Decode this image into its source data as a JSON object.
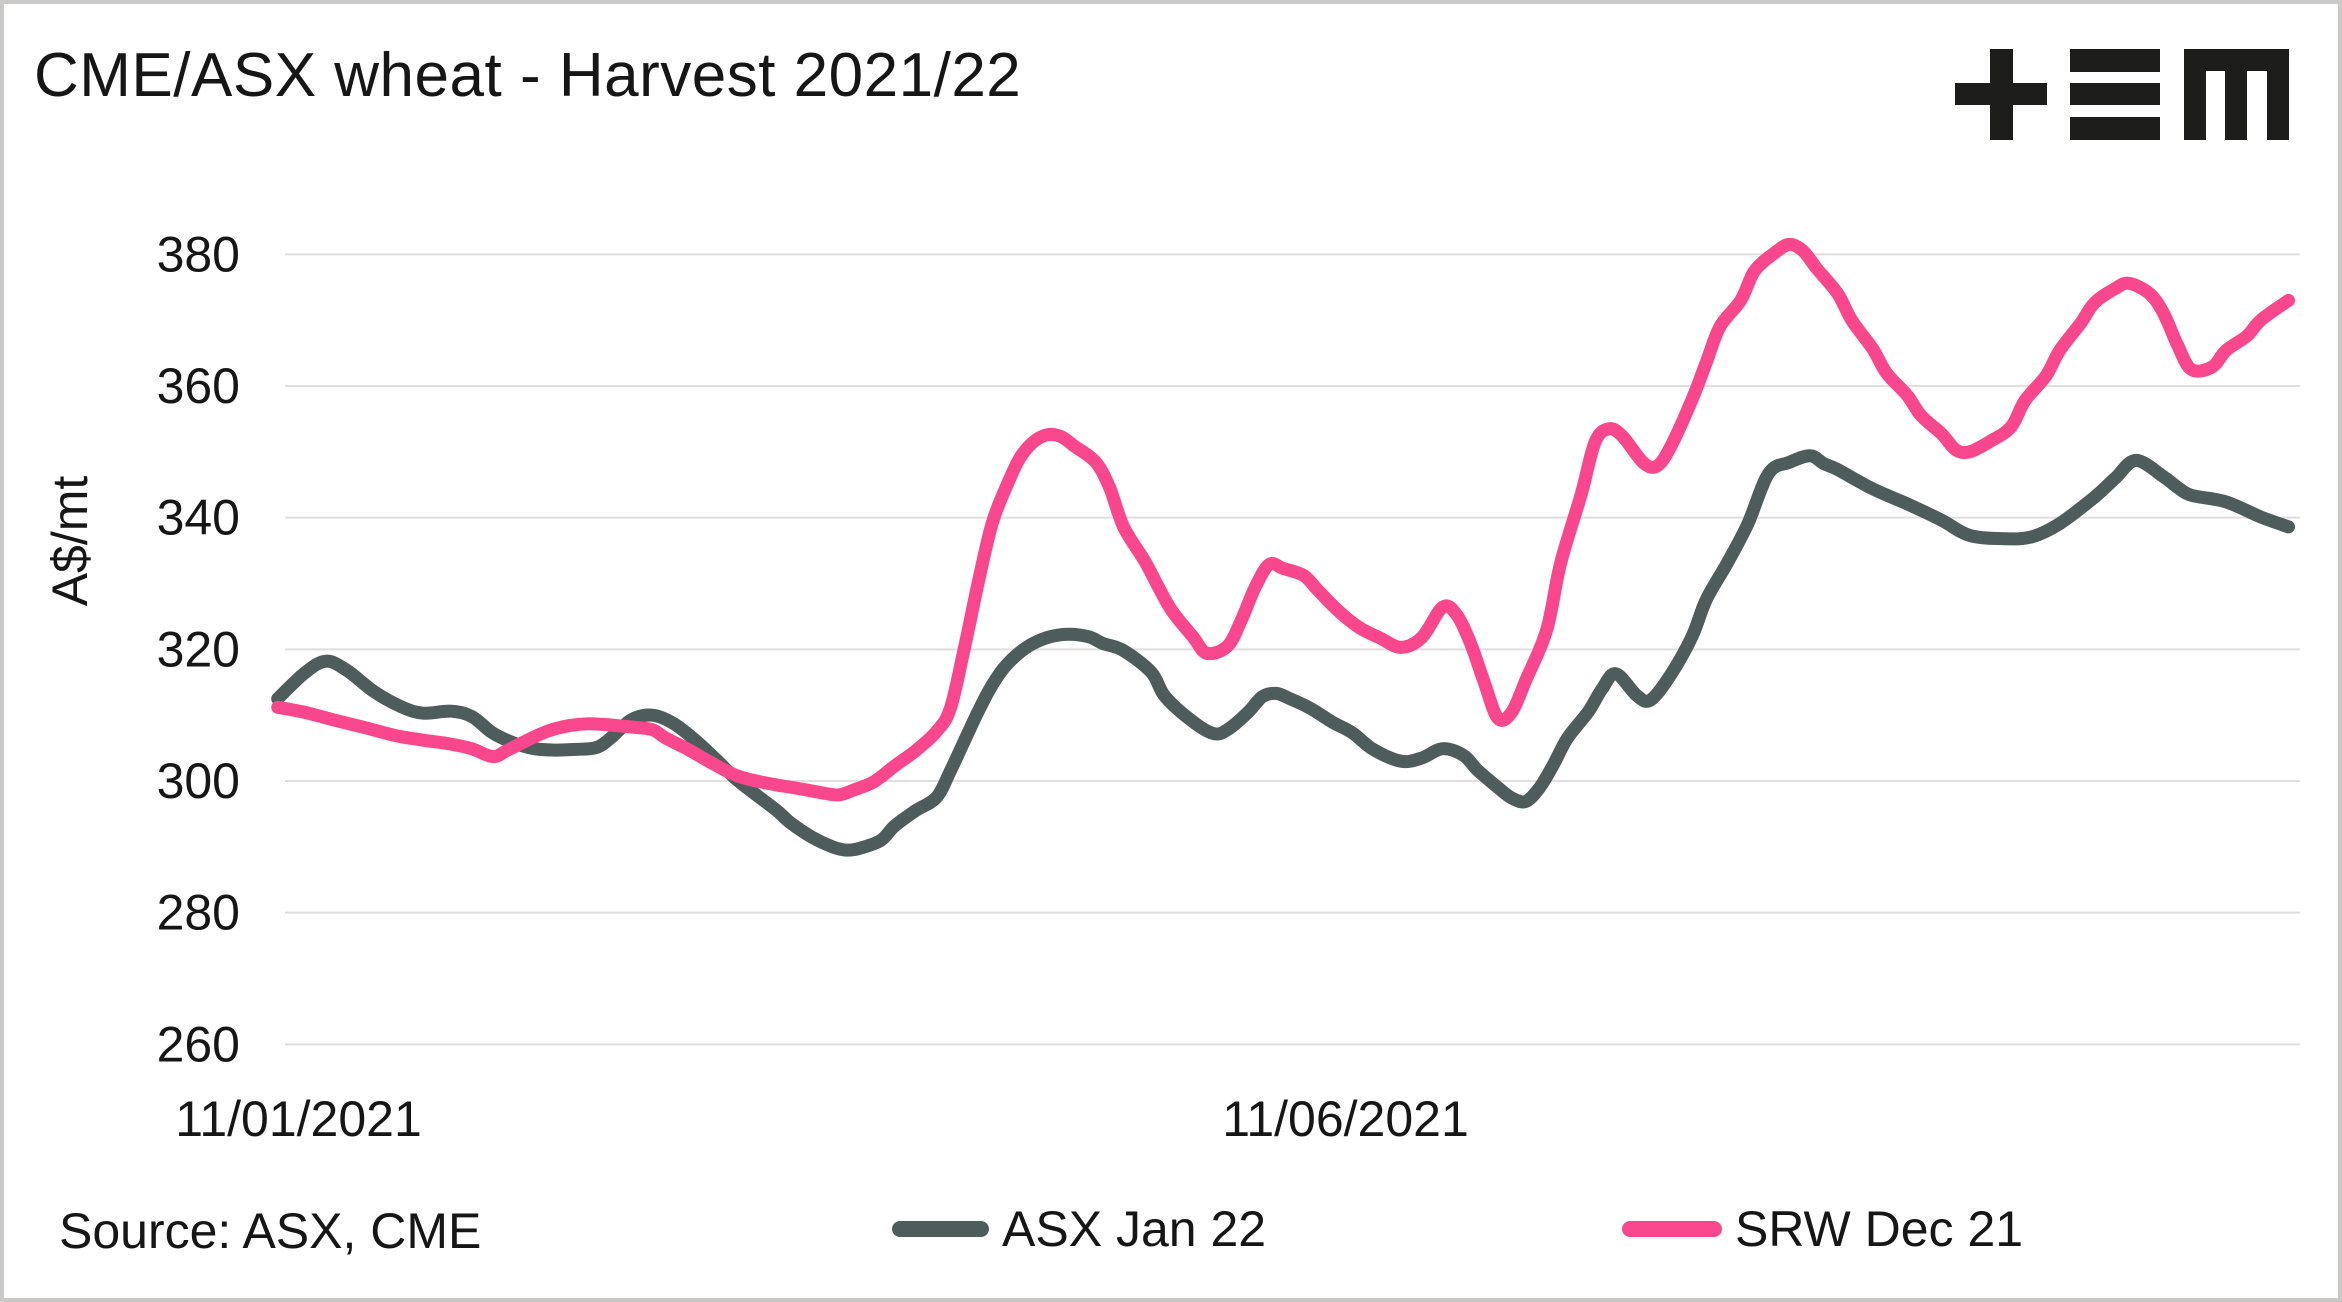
{
  "header": {
    "title": "CME/ASX wheat - Harvest 2021/22",
    "logo": "tem-logo",
    "logo_color": "#1d1d1b"
  },
  "source_note": "Source: ASX, CME",
  "legend": {
    "asx_label": "ASX Jan 22",
    "srw_label": "SRW Dec 21"
  },
  "colors": {
    "asx": "#4E5D5C",
    "srw": "#F9478E",
    "gridline": "#e0dede",
    "text": "#161616"
  },
  "chart_data": {
    "type": "line",
    "title": "CME/ASX wheat - Harvest 2021/22",
    "xlabel": "",
    "ylabel": "A$/mt",
    "ylim": [
      260,
      385
    ],
    "yticks": [
      260,
      280,
      300,
      320,
      340,
      360,
      380
    ],
    "xticks": [
      "11/01/2021",
      "11/06/2021"
    ],
    "grid": "horizontal-only",
    "legend_position": "bottom",
    "series": [
      {
        "name": "ASX Jan 22",
        "color": "#4E5D5C",
        "points": [
          [
            "08/01/2021",
            312.5
          ],
          [
            "12/01/2021",
            316.5
          ],
          [
            "15/01/2021",
            318.2
          ],
          [
            "18/01/2021",
            316.8
          ],
          [
            "22/01/2021",
            313.5
          ],
          [
            "26/01/2021",
            311.2
          ],
          [
            "29/01/2021",
            310.3
          ],
          [
            "02/02/2021",
            310.6
          ],
          [
            "05/02/2021",
            309.8
          ],
          [
            "08/02/2021",
            307.3
          ],
          [
            "11/02/2021",
            305.8
          ],
          [
            "14/02/2021",
            304.9
          ],
          [
            "17/02/2021",
            304.7
          ],
          [
            "20/02/2021",
            304.8
          ],
          [
            "23/02/2021",
            305.1
          ],
          [
            "25/02/2021",
            306.5
          ],
          [
            "28/02/2021",
            309.3
          ],
          [
            "03/03/2021",
            310.0
          ],
          [
            "06/03/2021",
            308.8
          ],
          [
            "09/03/2021",
            306.4
          ],
          [
            "12/03/2021",
            303.5
          ],
          [
            "15/03/2021",
            300.4
          ],
          [
            "18/03/2021",
            297.9
          ],
          [
            "21/03/2021",
            295.5
          ],
          [
            "23/03/2021",
            293.6
          ],
          [
            "26/03/2021",
            291.5
          ],
          [
            "29/03/2021",
            290.0
          ],
          [
            "31/03/2021",
            289.5
          ],
          [
            "02/04/2021",
            289.8
          ],
          [
            "05/04/2021",
            291.0
          ],
          [
            "07/04/2021",
            293.2
          ],
          [
            "10/04/2021",
            295.5
          ],
          [
            "13/04/2021",
            297.5
          ],
          [
            "15/04/2021",
            301.5
          ],
          [
            "17/04/2021",
            306.0
          ],
          [
            "19/04/2021",
            310.5
          ],
          [
            "21/04/2021",
            314.5
          ],
          [
            "23/04/2021",
            317.5
          ],
          [
            "26/04/2021",
            320.3
          ],
          [
            "29/04/2021",
            321.8
          ],
          [
            "02/05/2021",
            322.3
          ],
          [
            "05/05/2021",
            321.9
          ],
          [
            "07/05/2021",
            320.9
          ],
          [
            "10/05/2021",
            319.8
          ],
          [
            "14/05/2021",
            316.5
          ],
          [
            "16/05/2021",
            312.8
          ],
          [
            "20/05/2021",
            309.0
          ],
          [
            "23/05/2021",
            307.2
          ],
          [
            "25/05/2021",
            307.8
          ],
          [
            "28/05/2021",
            310.5
          ],
          [
            "30/05/2021",
            312.8
          ],
          [
            "01/06/2021",
            313.3
          ],
          [
            "03/06/2021",
            312.5
          ],
          [
            "06/06/2021",
            311.0
          ],
          [
            "09/06/2021",
            309.0
          ],
          [
            "12/06/2021",
            307.3
          ],
          [
            "15/06/2021",
            304.8
          ],
          [
            "19/06/2021",
            303.0
          ],
          [
            "22/06/2021",
            303.5
          ],
          [
            "25/06/2021",
            304.9
          ],
          [
            "28/06/2021",
            303.9
          ],
          [
            "30/06/2021",
            301.7
          ],
          [
            "03/07/2021",
            299.0
          ],
          [
            "05/07/2021",
            297.4
          ],
          [
            "07/07/2021",
            296.9
          ],
          [
            "09/07/2021",
            299.0
          ],
          [
            "11/07/2021",
            302.5
          ],
          [
            "13/07/2021",
            306.5
          ],
          [
            "16/07/2021",
            310.5
          ],
          [
            "18/07/2021",
            314.0
          ],
          [
            "20/07/2021",
            316.3
          ],
          [
            "23/07/2021",
            313.0
          ],
          [
            "25/07/2021",
            312.3
          ],
          [
            "28/07/2021",
            316.3
          ],
          [
            "31/07/2021",
            322.0
          ],
          [
            "02/08/2021",
            327.5
          ],
          [
            "05/08/2021",
            333.0
          ],
          [
            "08/08/2021",
            339.0
          ],
          [
            "11/08/2021",
            346.7
          ],
          [
            "14/08/2021",
            348.4
          ],
          [
            "17/08/2021",
            349.4
          ],
          [
            "19/08/2021",
            348.2
          ],
          [
            "21/08/2021",
            347.3
          ],
          [
            "26/08/2021",
            344.4
          ],
          [
            "31/08/2021",
            342.1
          ],
          [
            "05/09/2021",
            339.6
          ],
          [
            "09/09/2021",
            337.3
          ],
          [
            "14/09/2021",
            336.8
          ],
          [
            "18/09/2021",
            337.1
          ],
          [
            "22/09/2021",
            339.1
          ],
          [
            "27/09/2021",
            343.1
          ],
          [
            "30/09/2021",
            346.0
          ],
          [
            "03/10/2021",
            348.7
          ],
          [
            "07/10/2021",
            346.2
          ],
          [
            "09/10/2021",
            344.6
          ],
          [
            "11/10/2021",
            343.4
          ],
          [
            "16/10/2021",
            342.4
          ],
          [
            "21/10/2021",
            340.1
          ],
          [
            "25/10/2021",
            338.6
          ]
        ]
      },
      {
        "name": "SRW Dec 21",
        "color": "#F9478E",
        "points": [
          [
            "08/01/2021",
            311.2
          ],
          [
            "12/01/2021",
            310.4
          ],
          [
            "16/01/2021",
            309.3
          ],
          [
            "21/01/2021",
            308.0
          ],
          [
            "25/01/2021",
            306.9
          ],
          [
            "29/01/2021",
            306.2
          ],
          [
            "02/02/2021",
            305.6
          ],
          [
            "05/02/2021",
            304.9
          ],
          [
            "08/02/2021",
            303.7
          ],
          [
            "10/02/2021",
            304.6
          ],
          [
            "13/02/2021",
            306.2
          ],
          [
            "16/02/2021",
            307.6
          ],
          [
            "19/02/2021",
            308.4
          ],
          [
            "22/02/2021",
            308.7
          ],
          [
            "25/02/2021",
            308.5
          ],
          [
            "28/02/2021",
            308.2
          ],
          [
            "03/03/2021",
            307.8
          ],
          [
            "05/03/2021",
            306.5
          ],
          [
            "08/03/2021",
            304.9
          ],
          [
            "12/03/2021",
            302.5
          ],
          [
            "15/03/2021",
            300.9
          ],
          [
            "18/03/2021",
            300.0
          ],
          [
            "21/03/2021",
            299.4
          ],
          [
            "25/03/2021",
            298.7
          ],
          [
            "28/03/2021",
            298.1
          ],
          [
            "30/03/2021",
            297.9
          ],
          [
            "01/04/2021",
            298.6
          ],
          [
            "04/04/2021",
            299.9
          ],
          [
            "07/04/2021",
            302.3
          ],
          [
            "10/04/2021",
            304.6
          ],
          [
            "13/04/2021",
            307.5
          ],
          [
            "15/04/2021",
            311.0
          ],
          [
            "17/04/2021",
            320.0
          ],
          [
            "19/04/2021",
            330.0
          ],
          [
            "21/04/2021",
            339.0
          ],
          [
            "23/04/2021",
            344.5
          ],
          [
            "25/04/2021",
            349.0
          ],
          [
            "27/04/2021",
            351.5
          ],
          [
            "29/04/2021",
            352.6
          ],
          [
            "01/05/2021",
            352.3
          ],
          [
            "03/05/2021",
            350.8
          ],
          [
            "06/05/2021",
            348.4
          ],
          [
            "08/05/2021",
            344.5
          ],
          [
            "10/05/2021",
            338.6
          ],
          [
            "13/05/2021",
            333.5
          ],
          [
            "15/05/2021",
            329.5
          ],
          [
            "17/05/2021",
            325.8
          ],
          [
            "20/05/2021",
            321.9
          ],
          [
            "22/05/2021",
            319.4
          ],
          [
            "25/05/2021",
            320.5
          ],
          [
            "27/05/2021",
            324.5
          ],
          [
            "29/05/2021",
            329.5
          ],
          [
            "31/05/2021",
            332.9
          ],
          [
            "02/06/2021",
            332.3
          ],
          [
            "05/06/2021",
            331.2
          ],
          [
            "07/06/2021",
            329.0
          ],
          [
            "10/06/2021",
            325.8
          ],
          [
            "13/06/2021",
            323.3
          ],
          [
            "16/06/2021",
            321.7
          ],
          [
            "19/06/2021",
            320.3
          ],
          [
            "22/06/2021",
            321.8
          ],
          [
            "25/06/2021",
            326.4
          ],
          [
            "27/06/2021",
            325.3
          ],
          [
            "29/06/2021",
            321.0
          ],
          [
            "01/07/2021",
            315.0
          ],
          [
            "03/07/2021",
            309.5
          ],
          [
            "05/07/2021",
            310.5
          ],
          [
            "07/07/2021",
            315.3
          ],
          [
            "10/07/2021",
            322.9
          ],
          [
            "12/07/2021",
            333.0
          ],
          [
            "15/07/2021",
            343.6
          ],
          [
            "17/07/2021",
            351.5
          ],
          [
            "19/07/2021",
            353.5
          ],
          [
            "21/07/2021",
            352.3
          ],
          [
            "24/07/2021",
            348.3
          ],
          [
            "26/07/2021",
            347.9
          ],
          [
            "28/07/2021",
            351.0
          ],
          [
            "31/07/2021",
            358.0
          ],
          [
            "02/08/2021",
            363.5
          ],
          [
            "04/08/2021",
            369.0
          ],
          [
            "07/08/2021",
            373.0
          ],
          [
            "09/08/2021",
            377.5
          ],
          [
            "12/08/2021",
            380.3
          ],
          [
            "14/08/2021",
            381.5
          ],
          [
            "16/08/2021",
            380.5
          ],
          [
            "18/08/2021",
            377.8
          ],
          [
            "21/08/2021",
            374.0
          ],
          [
            "23/08/2021",
            370.0
          ],
          [
            "26/08/2021",
            365.7
          ],
          [
            "28/08/2021",
            362.0
          ],
          [
            "31/08/2021",
            358.6
          ],
          [
            "02/09/2021",
            355.5
          ],
          [
            "05/09/2021",
            352.7
          ],
          [
            "07/09/2021",
            350.3
          ],
          [
            "09/09/2021",
            350.0
          ],
          [
            "12/09/2021",
            351.6
          ],
          [
            "15/09/2021",
            353.8
          ],
          [
            "17/09/2021",
            357.8
          ],
          [
            "20/09/2021",
            361.5
          ],
          [
            "22/09/2021",
            365.4
          ],
          [
            "25/09/2021",
            369.5
          ],
          [
            "27/09/2021",
            372.6
          ],
          [
            "30/09/2021",
            374.8
          ],
          [
            "02/10/2021",
            375.6
          ],
          [
            "05/10/2021",
            374.0
          ],
          [
            "07/10/2021",
            371.0
          ],
          [
            "09/10/2021",
            366.2
          ],
          [
            "11/10/2021",
            362.5
          ],
          [
            "14/10/2021",
            362.9
          ],
          [
            "16/10/2021",
            365.4
          ],
          [
            "19/10/2021",
            367.6
          ],
          [
            "21/10/2021",
            370.0
          ],
          [
            "25/10/2021",
            373.0
          ]
        ]
      }
    ]
  }
}
